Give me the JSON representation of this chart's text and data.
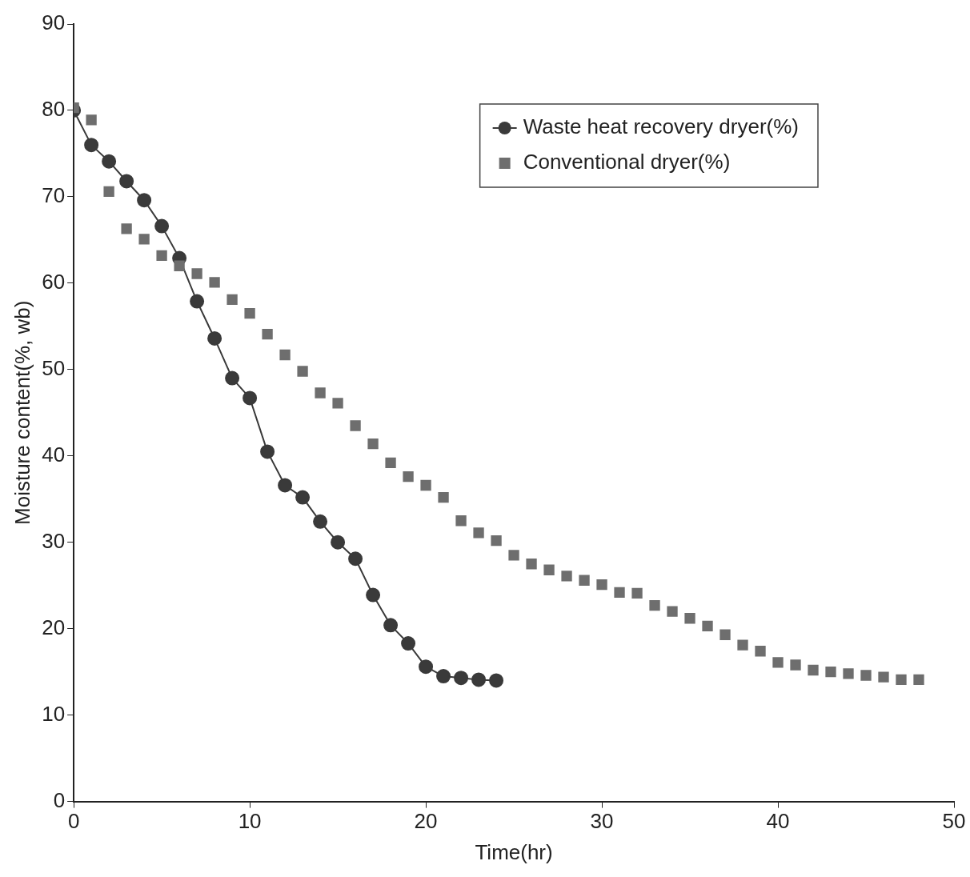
{
  "chart_data": {
    "type": "line",
    "xlabel": "Time(hr)",
    "ylabel": "Moisture content(%, wb)",
    "xlim": [
      0,
      50
    ],
    "xticks": [
      0,
      10,
      20,
      30,
      40,
      50
    ],
    "ylim": [
      0,
      90
    ],
    "yticks": [
      0,
      10,
      20,
      30,
      40,
      50,
      60,
      70,
      80,
      90
    ],
    "grid": false,
    "legend": "top right",
    "series": [
      {
        "name": "Waste heat recovery dryer(%)",
        "type": "line",
        "marker": "circle",
        "line_style": "solid",
        "color": "#3a3a3a",
        "x": [
          0,
          1,
          2,
          3,
          4,
          5,
          6,
          7,
          8,
          9,
          10,
          11,
          12,
          13,
          14,
          15,
          16,
          17,
          18,
          19,
          20,
          21,
          22,
          23,
          24
        ],
        "values": [
          80.0,
          76.0,
          74.1,
          71.8,
          69.6,
          66.6,
          62.9,
          57.9,
          53.6,
          49.0,
          46.7,
          40.5,
          36.6,
          35.2,
          32.4,
          30.0,
          28.1,
          23.9,
          20.4,
          18.3,
          15.6,
          14.5,
          14.3,
          14.1,
          14.0
        ]
      },
      {
        "name": "Conventional dryer(%)",
        "type": "scatter",
        "marker": "square",
        "color": "#6e6e6e",
        "x": [
          0,
          1,
          2,
          3,
          4,
          5,
          6,
          7,
          8,
          9,
          10,
          11,
          12,
          13,
          14,
          15,
          16,
          17,
          18,
          19,
          20,
          21,
          22,
          23,
          24,
          25,
          26,
          27,
          28,
          29,
          30,
          31,
          32,
          33,
          34,
          35,
          36,
          37,
          38,
          39,
          40,
          41,
          42,
          43,
          44,
          45,
          46,
          47,
          48
        ],
        "values": [
          80.3,
          78.9,
          70.6,
          66.3,
          65.1,
          63.2,
          62.0,
          61.1,
          60.1,
          58.1,
          56.5,
          54.1,
          51.7,
          49.8,
          47.3,
          46.1,
          43.5,
          41.4,
          39.2,
          37.6,
          36.6,
          35.2,
          32.5,
          31.1,
          30.2,
          28.5,
          27.5,
          26.8,
          26.1,
          25.6,
          25.1,
          24.2,
          24.1,
          22.7,
          22.0,
          21.2,
          20.3,
          19.3,
          18.1,
          17.4,
          16.1,
          15.8,
          15.2,
          15.0,
          14.8,
          14.6,
          14.4,
          14.1,
          14.1
        ]
      }
    ]
  }
}
